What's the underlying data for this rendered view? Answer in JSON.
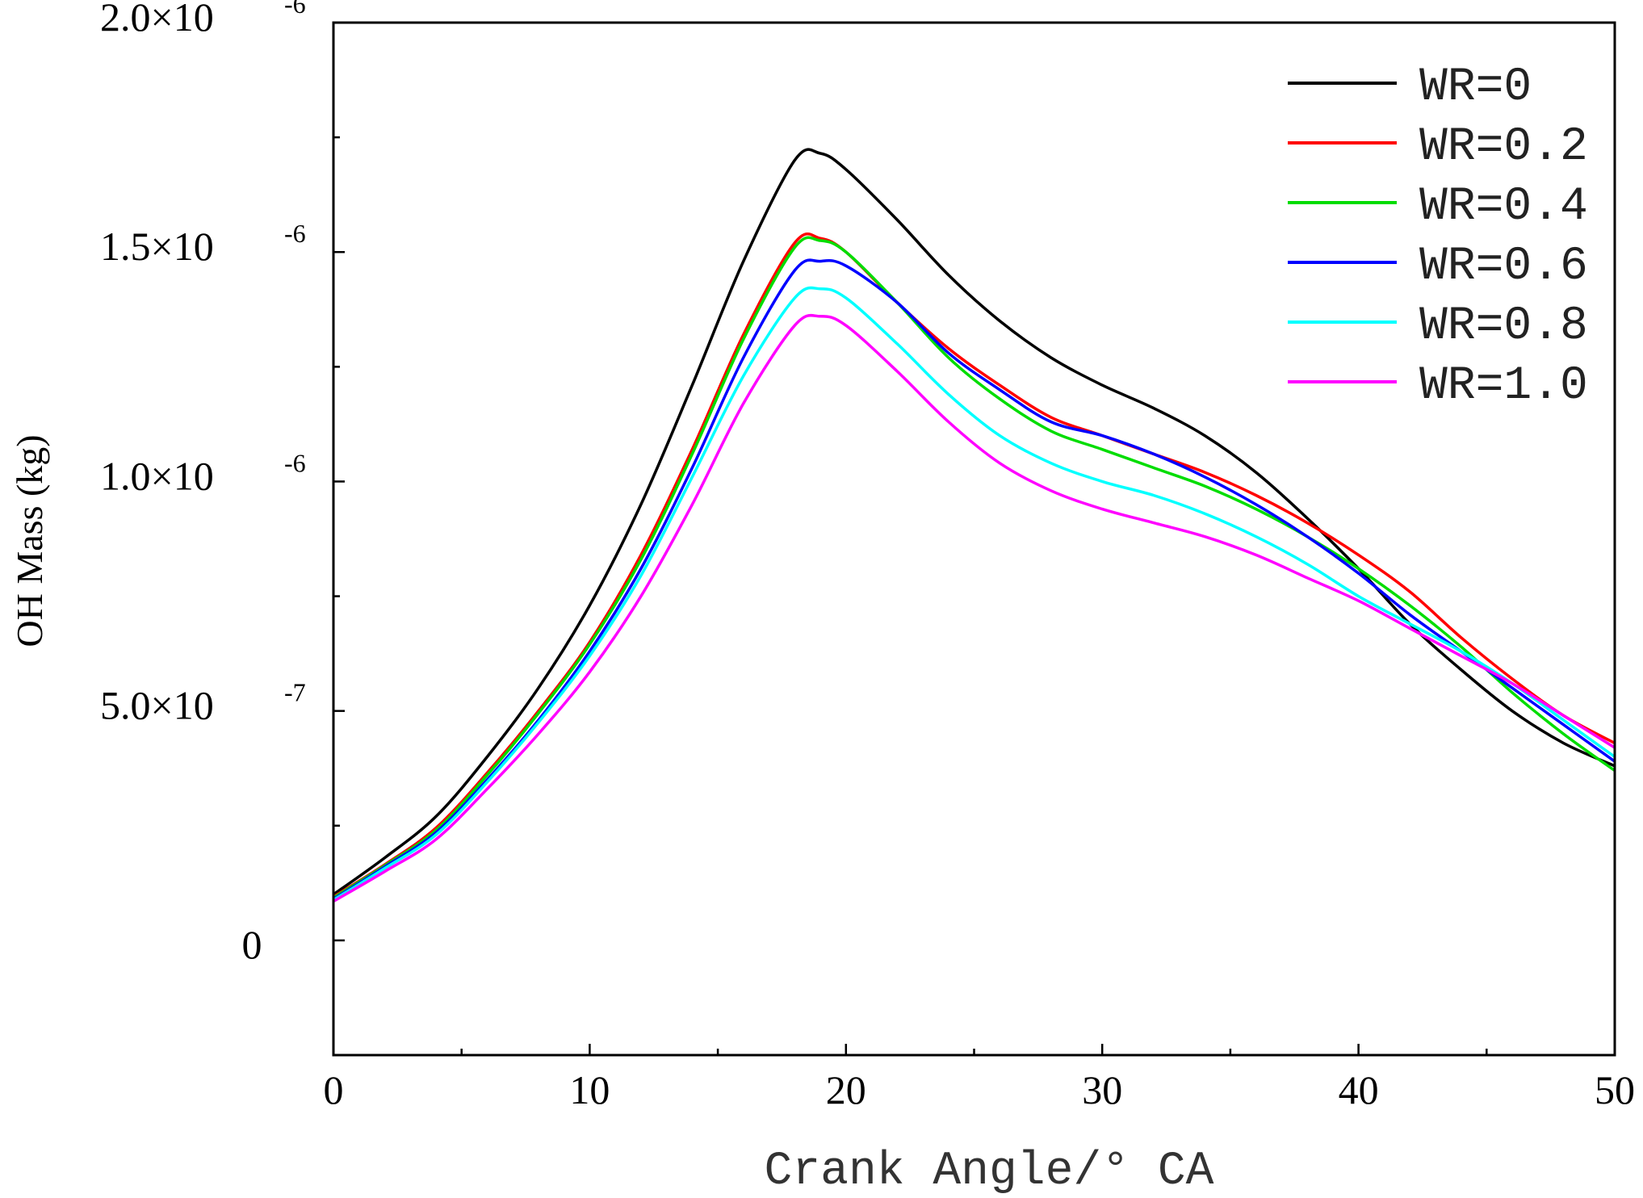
{
  "chart_data": {
    "type": "line",
    "title": "",
    "xlabel": "Crank Angle/° CA",
    "ylabel": "OH Mass (kg)",
    "xlim": [
      0,
      50
    ],
    "ylim": [
      -2.5e-07,
      2e-06
    ],
    "x_ticks": [
      {
        "value": 0,
        "label": "0"
      },
      {
        "value": 10,
        "label": "10"
      },
      {
        "value": 20,
        "label": "20"
      },
      {
        "value": 30,
        "label": "30"
      },
      {
        "value": 40,
        "label": "40"
      },
      {
        "value": 50,
        "label": "50"
      }
    ],
    "y_ticks": [
      {
        "value": 0,
        "mantissa": "0",
        "exponent": ""
      },
      {
        "value": 5e-07,
        "mantissa": "5.0×10",
        "exponent": "-7"
      },
      {
        "value": 1e-06,
        "mantissa": "1.0×10",
        "exponent": "-6"
      },
      {
        "value": 1.5e-06,
        "mantissa": "1.5×10",
        "exponent": "-6"
      },
      {
        "value": 2e-06,
        "mantissa": "2.0×10",
        "exponent": "-6"
      }
    ],
    "legend_position": "top-right",
    "grid": false,
    "x": [
      0,
      2,
      4,
      6,
      8,
      10,
      12,
      14,
      16,
      18,
      19,
      20,
      22,
      24,
      26,
      28,
      30,
      32,
      34,
      36,
      38,
      40,
      42,
      44,
      46,
      48,
      50
    ],
    "series": [
      {
        "name": "WR=0",
        "color": "#000000",
        "values": [
          1e-07,
          1.8e-07,
          2.7e-07,
          4e-07,
          5.5e-07,
          7.3e-07,
          9.5e-07,
          1.21e-06,
          1.48e-06,
          1.7e-06,
          1.715e-06,
          1.68e-06,
          1.57e-06,
          1.45e-06,
          1.35e-06,
          1.27e-06,
          1.21e-06,
          1.16e-06,
          1.1e-06,
          1.02e-06,
          9.2e-07,
          8.1e-07,
          6.9e-07,
          5.9e-07,
          5e-07,
          4.3e-07,
          3.8e-07
        ]
      },
      {
        "name": "WR=0.2",
        "color": "#ff0000",
        "values": [
          9.5e-08,
          1.65e-07,
          2.45e-07,
          3.65e-07,
          5e-07,
          6.5e-07,
          8.4e-07,
          1.07e-06,
          1.32e-06,
          1.52e-06,
          1.53e-06,
          1.5e-06,
          1.39e-06,
          1.29e-06,
          1.21e-06,
          1.14e-06,
          1.1e-06,
          1.06e-06,
          1.02e-06,
          9.7e-07,
          9.1e-07,
          8.4e-07,
          7.6e-07,
          6.6e-07,
          5.7e-07,
          4.9e-07,
          4.3e-07
        ]
      },
      {
        "name": "WR=0.4",
        "color": "#00dd00",
        "values": [
          9.3e-08,
          1.63e-07,
          2.4e-07,
          3.6e-07,
          4.95e-07,
          6.45e-07,
          8.3e-07,
          1.06e-06,
          1.31e-06,
          1.51e-06,
          1.525e-06,
          1.5e-06,
          1.39e-06,
          1.27e-06,
          1.18e-06,
          1.11e-06,
          1.07e-06,
          1.03e-06,
          9.9e-07,
          9.4e-07,
          8.8e-07,
          8.1e-07,
          7.3e-07,
          6.4e-07,
          5.4e-07,
          4.5e-07,
          3.7e-07
        ]
      },
      {
        "name": "WR=0.6",
        "color": "#0000ff",
        "values": [
          9e-08,
          1.6e-07,
          2.35e-07,
          3.5e-07,
          4.8e-07,
          6.3e-07,
          8.1e-07,
          1.03e-06,
          1.27e-06,
          1.46e-06,
          1.48e-06,
          1.47e-06,
          1.39e-06,
          1.28e-06,
          1.2e-06,
          1.13e-06,
          1.1e-06,
          1.06e-06,
          1.01e-06,
          9.5e-07,
          8.8e-07,
          8e-07,
          7.1e-07,
          6.3e-07,
          5.5e-07,
          4.7e-07,
          3.9e-07
        ]
      },
      {
        "name": "WR=0.8",
        "color": "#00ffff",
        "values": [
          8.8e-08,
          1.57e-07,
          2.3e-07,
          3.45e-07,
          4.75e-07,
          6.2e-07,
          7.95e-07,
          1.01e-06,
          1.23e-06,
          1.4e-06,
          1.42e-06,
          1.4e-06,
          1.3e-06,
          1.19e-06,
          1.1e-06,
          1.04e-06,
          1e-06,
          9.7e-07,
          9.3e-07,
          8.8e-07,
          8.2e-07,
          7.5e-07,
          6.9e-07,
          6.3e-07,
          5.6e-07,
          4.8e-07,
          4e-07
        ]
      },
      {
        "name": "WR=1.0",
        "color": "#ff00ff",
        "values": [
          8.5e-08,
          1.5e-07,
          2.2e-07,
          3.3e-07,
          4.5e-07,
          5.85e-07,
          7.5e-07,
          9.5e-07,
          1.17e-06,
          1.34e-06,
          1.36e-06,
          1.34e-06,
          1.24e-06,
          1.13e-06,
          1.04e-06,
          9.8e-07,
          9.4e-07,
          9.1e-07,
          8.8e-07,
          8.4e-07,
          7.9e-07,
          7.4e-07,
          6.8e-07,
          6.2e-07,
          5.6e-07,
          4.9e-07,
          4.2e-07
        ]
      }
    ]
  }
}
